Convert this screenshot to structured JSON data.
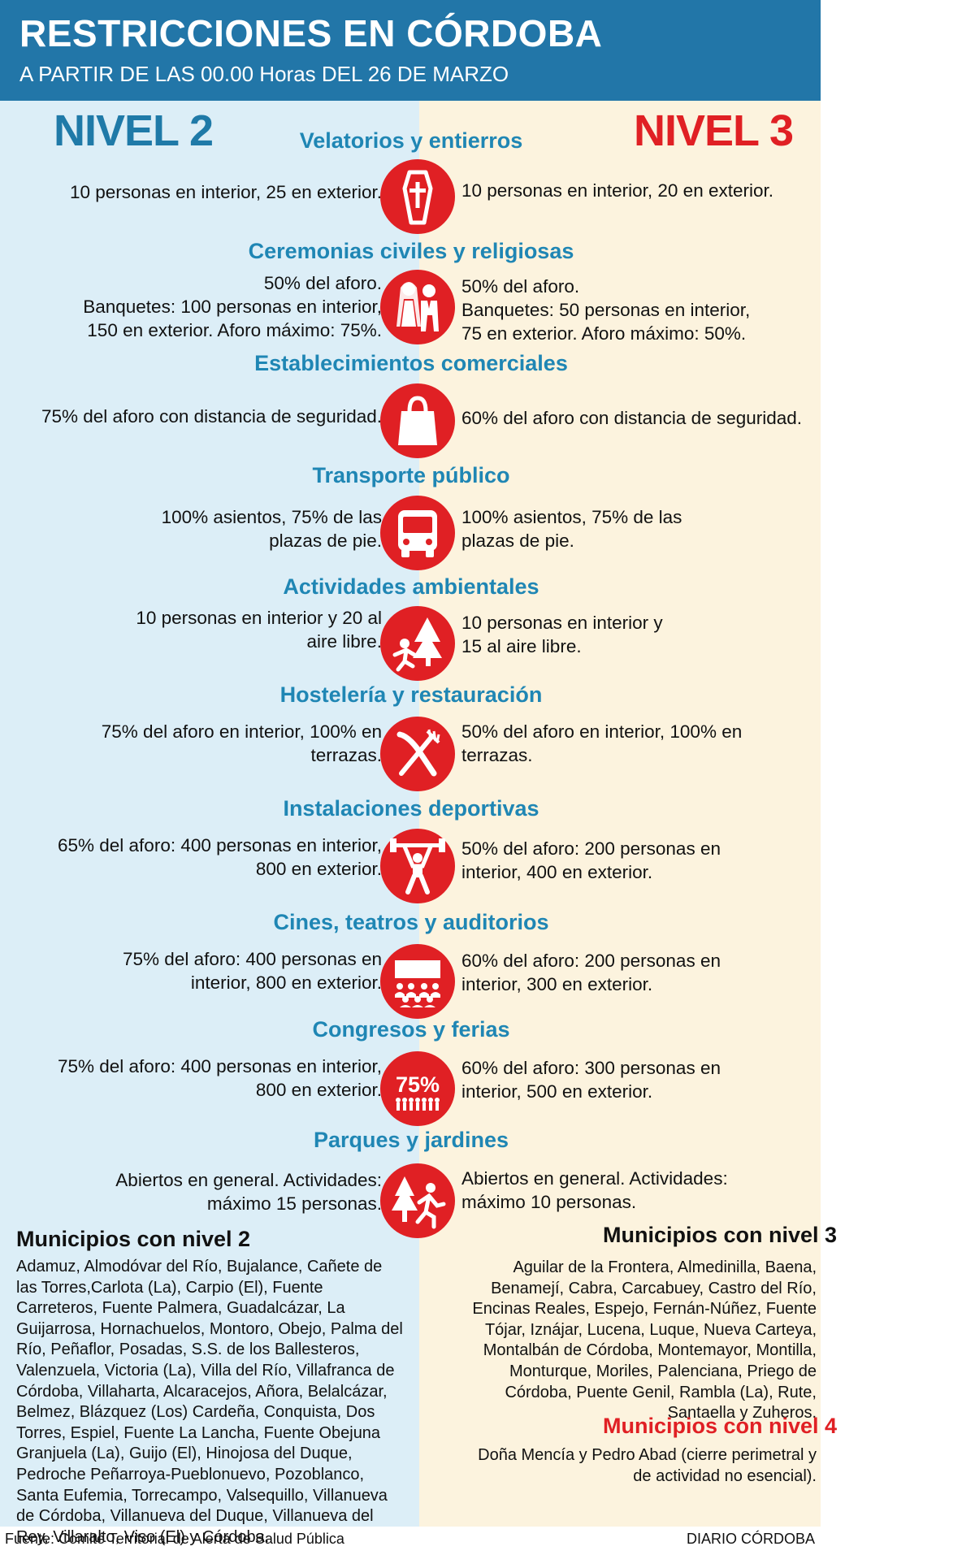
{
  "header": {
    "title": "RESTRICCIONES EN CÓRDOBA",
    "subtitle": "A PARTIR DE LAS 00.00 Horas DEL 26 DE MARZO"
  },
  "levels": {
    "left": "NIVEL 2",
    "right": "NIVEL 3"
  },
  "colors": {
    "header_bg": "#2276a8",
    "left_bg": "#dceef7",
    "right_bg": "#fcf3de",
    "icon_red": "#e02024",
    "section_blue": "#1f86b4"
  },
  "sections": [
    {
      "title": "Velatorios y entierros",
      "icon": "coffin-icon",
      "nivel2": "10  personas en interior, 25 en exterior.",
      "nivel3": "10  personas en interior, 20 en exterior."
    },
    {
      "title": "Ceremonias civiles y religiosas",
      "icon": "wedding-couple-icon",
      "nivel2": "50% del aforo.\nBanquetes: 100 personas en interior,\n150 en exterior. Aforo máximo: 75%.",
      "nivel3": "50% del aforo.\nBanquetes: 50 personas en interior,\n75 en exterior. Aforo máximo: 50%."
    },
    {
      "title": "Establecimientos comerciales",
      "icon": "shopping-bag-icon",
      "nivel2": "75% del aforo con distancia de seguridad.",
      "nivel3": "60% del aforo con distancia de seguridad."
    },
    {
      "title": "Transporte público",
      "icon": "bus-icon",
      "nivel2": "100% asientos, 75% de las\nplazas de pie.",
      "nivel3": "100% asientos, 75% de las\nplazas de pie."
    },
    {
      "title": "Actividades ambientales",
      "icon": "hiker-trees-icon",
      "nivel2": "10 personas en interior y 20 al\naire libre.",
      "nivel3": "10 personas en interior y\n15 al aire libre."
    },
    {
      "title": "Hostelería y restauración",
      "icon": "fork-knife-icon",
      "nivel2": "75% del aforo en interior, 100% en\nterrazas.",
      "nivel3": "50% del aforo en interior, 100% en\nterrazas."
    },
    {
      "title": "Instalaciones deportivas",
      "icon": "weightlifter-icon",
      "nivel2": "65% del aforo: 400 personas en interior,\n800 en exterior.",
      "nivel3": "50% del aforo: 200 personas en\ninterior, 400 en exterior."
    },
    {
      "title": "Cines, teatros y auditorios",
      "icon": "cinema-audience-icon",
      "nivel2": "75% del aforo: 400 personas en\ninterior, 800 en exterior.",
      "nivel3": "60% del aforo: 200 personas en\ninterior, 300 en exterior."
    },
    {
      "title": "Congresos y ferias",
      "icon": "percent-crowd-icon",
      "icon_text": "75%",
      "nivel2": "75% del aforo: 400 personas en interior,\n800 en exterior.",
      "nivel3": "60% del aforo: 300 personas en\ninterior, 500 en exterior."
    },
    {
      "title": "Parques y jardines",
      "icon": "runner-tree-icon",
      "nivel2": "Abiertos en general. Actividades:\nmáximo 15 personas.",
      "nivel3": "Abiertos en general. Actividades:\nmáximo 10 personas."
    }
  ],
  "municipios": {
    "nivel2": {
      "title": "Municipios con nivel 2",
      "text": "Adamuz, Almodóvar del Río, Bujalance, Cañete de las Torres,Carlota (La), Carpio (El), Fuente Carreteros, Fuente Palmera, Guadalcázar, La Guijarrosa, Hornachuelos, Montoro, Obejo, Palma del Río, Peñaflor, Posadas, S.S. de los Ballesteros, Valenzuela, Victoria (La), Villa del Río, Villafranca de Córdoba, Villaharta, Alcaracejos, Añora, Belalcázar, Belmez, Blázquez (Los) Cardeña, Conquista, Dos Torres, Espiel, Fuente La Lancha, Fuente Obejuna Granjuela (La), Guijo (El), Hinojosa del Duque, Pedroche Peñarroya-Pueblonuevo, Pozoblanco, Santa Eufemia, Torrecampo, Valsequillo, Villanueva de Córdoba, Villanueva del Duque, Villanueva del Rey, Villaralto, Viso (El) y Córdoba."
    },
    "nivel3": {
      "title": "Municipios con nivel 3",
      "text": "Aguilar de la Frontera, Almedinilla, Baena, Benamejí, Cabra, Carcabuey, Castro del Río, Encinas Reales, Espejo, Fernán-Núñez, Fuente Tójar, Iznájar, Lucena, Luque, Nueva Carteya,  Montalbán de Córdoba, Montemayor, Montilla, Monturque, Moriles, Palenciana, Priego de Córdoba, Puente Genil, Rambla (La), Rute, Santaella y Zuheros."
    },
    "nivel4": {
      "title": "Municipios con nivel 4",
      "text": "Doña Mencía y Pedro Abad (cierre perimetral y de actividad no esencial)."
    }
  },
  "footer": {
    "source": "Fuente: Comité Territorial de Alerta de Salud Pública",
    "brand": "DIARIO CÓRDOBA"
  }
}
